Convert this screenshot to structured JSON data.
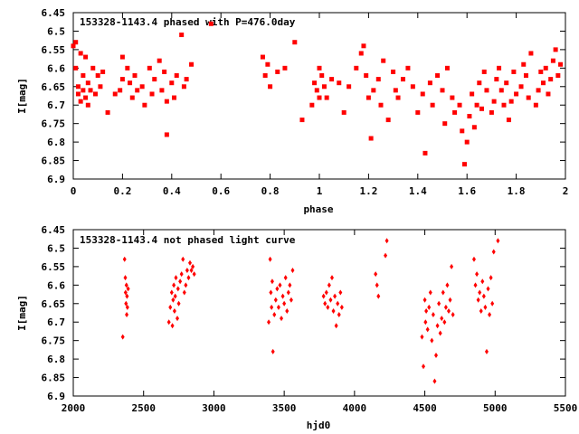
{
  "chart_data": [
    {
      "type": "scatter",
      "title": "153328-1143.4 phased with P=476.0day",
      "xlabel": "phase",
      "ylabel": "I[mag]",
      "xlim": [
        0,
        2
      ],
      "ylim": [
        6.9,
        6.45
      ],
      "y_inverted": true,
      "xticks": [
        "0",
        "0.2",
        "0.4",
        "0.6",
        "0.8",
        "1",
        "1.2",
        "1.4",
        "1.6",
        "1.8",
        "2"
      ],
      "yticks": [
        "6.45",
        "6.5",
        "6.55",
        "6.6",
        "6.65",
        "6.7",
        "6.75",
        "6.8",
        "6.85",
        "6.9"
      ],
      "marker": "filled-square",
      "color": "#ff0000",
      "grid": false,
      "points": [
        [
          0.0,
          6.54
        ],
        [
          0.01,
          6.53
        ],
        [
          0.01,
          6.6
        ],
        [
          0.02,
          6.65
        ],
        [
          0.02,
          6.67
        ],
        [
          0.03,
          6.56
        ],
        [
          0.03,
          6.69
        ],
        [
          0.04,
          6.62
        ],
        [
          0.04,
          6.66
        ],
        [
          0.05,
          6.68
        ],
        [
          0.05,
          6.57
        ],
        [
          0.06,
          6.64
        ],
        [
          0.06,
          6.7
        ],
        [
          0.07,
          6.66
        ],
        [
          0.08,
          6.6
        ],
        [
          0.09,
          6.67
        ],
        [
          0.1,
          6.62
        ],
        [
          0.11,
          6.65
        ],
        [
          0.12,
          6.61
        ],
        [
          0.14,
          6.72
        ],
        [
          0.17,
          6.67
        ],
        [
          0.19,
          6.66
        ],
        [
          0.2,
          6.57
        ],
        [
          0.2,
          6.63
        ],
        [
          0.22,
          6.6
        ],
        [
          0.23,
          6.64
        ],
        [
          0.24,
          6.68
        ],
        [
          0.25,
          6.62
        ],
        [
          0.26,
          6.66
        ],
        [
          0.28,
          6.65
        ],
        [
          0.29,
          6.7
        ],
        [
          0.31,
          6.6
        ],
        [
          0.32,
          6.67
        ],
        [
          0.33,
          6.63
        ],
        [
          0.35,
          6.58
        ],
        [
          0.36,
          6.66
        ],
        [
          0.37,
          6.61
        ],
        [
          0.38,
          6.69
        ],
        [
          0.38,
          6.78
        ],
        [
          0.4,
          6.64
        ],
        [
          0.41,
          6.68
        ],
        [
          0.42,
          6.62
        ],
        [
          0.44,
          6.51
        ],
        [
          0.45,
          6.65
        ],
        [
          0.46,
          6.63
        ],
        [
          0.48,
          6.59
        ],
        [
          0.56,
          6.48
        ],
        [
          0.77,
          6.57
        ],
        [
          0.78,
          6.62
        ],
        [
          0.79,
          6.59
        ],
        [
          0.8,
          6.65
        ],
        [
          0.83,
          6.61
        ],
        [
          0.86,
          6.6
        ],
        [
          0.9,
          6.53
        ],
        [
          0.93,
          6.74
        ],
        [
          0.97,
          6.7
        ],
        [
          0.98,
          6.64
        ],
        [
          0.99,
          6.66
        ],
        [
          1.0,
          6.68
        ],
        [
          1.0,
          6.6
        ],
        [
          1.01,
          6.62
        ],
        [
          1.02,
          6.65
        ],
        [
          1.03,
          6.68
        ],
        [
          1.05,
          6.63
        ],
        [
          1.08,
          6.64
        ],
        [
          1.1,
          6.72
        ],
        [
          1.12,
          6.65
        ],
        [
          1.15,
          6.6
        ],
        [
          1.17,
          6.56
        ],
        [
          1.18,
          6.54
        ],
        [
          1.19,
          6.62
        ],
        [
          1.2,
          6.68
        ],
        [
          1.21,
          6.79
        ],
        [
          1.22,
          6.66
        ],
        [
          1.24,
          6.63
        ],
        [
          1.25,
          6.7
        ],
        [
          1.26,
          6.58
        ],
        [
          1.28,
          6.74
        ],
        [
          1.3,
          6.61
        ],
        [
          1.31,
          6.66
        ],
        [
          1.32,
          6.68
        ],
        [
          1.34,
          6.63
        ],
        [
          1.36,
          6.6
        ],
        [
          1.38,
          6.65
        ],
        [
          1.4,
          6.72
        ],
        [
          1.42,
          6.67
        ],
        [
          1.43,
          6.83
        ],
        [
          1.45,
          6.64
        ],
        [
          1.46,
          6.7
        ],
        [
          1.48,
          6.62
        ],
        [
          1.5,
          6.66
        ],
        [
          1.51,
          6.75
        ],
        [
          1.52,
          6.6
        ],
        [
          1.54,
          6.68
        ],
        [
          1.55,
          6.72
        ],
        [
          1.57,
          6.7
        ],
        [
          1.58,
          6.77
        ],
        [
          1.59,
          6.86
        ],
        [
          1.6,
          6.8
        ],
        [
          1.61,
          6.73
        ],
        [
          1.62,
          6.67
        ],
        [
          1.63,
          6.76
        ],
        [
          1.64,
          6.7
        ],
        [
          1.65,
          6.64
        ],
        [
          1.66,
          6.71
        ],
        [
          1.67,
          6.61
        ],
        [
          1.68,
          6.66
        ],
        [
          1.7,
          6.72
        ],
        [
          1.71,
          6.69
        ],
        [
          1.72,
          6.63
        ],
        [
          1.73,
          6.6
        ],
        [
          1.74,
          6.66
        ],
        [
          1.75,
          6.7
        ],
        [
          1.76,
          6.64
        ],
        [
          1.77,
          6.74
        ],
        [
          1.78,
          6.69
        ],
        [
          1.79,
          6.61
        ],
        [
          1.8,
          6.67
        ],
        [
          1.82,
          6.65
        ],
        [
          1.83,
          6.59
        ],
        [
          1.84,
          6.62
        ],
        [
          1.85,
          6.68
        ],
        [
          1.86,
          6.56
        ],
        [
          1.88,
          6.7
        ],
        [
          1.89,
          6.66
        ],
        [
          1.9,
          6.61
        ],
        [
          1.91,
          6.64
        ],
        [
          1.92,
          6.6
        ],
        [
          1.93,
          6.67
        ],
        [
          1.94,
          6.63
        ],
        [
          1.95,
          6.58
        ],
        [
          1.96,
          6.55
        ],
        [
          1.97,
          6.62
        ],
        [
          1.98,
          6.59
        ]
      ]
    },
    {
      "type": "scatter",
      "title": "153328-1143.4 not phased light curve",
      "xlabel": "hjd0",
      "ylabel": "I[mag]",
      "xlim": [
        2000,
        5500
      ],
      "ylim": [
        6.9,
        6.45
      ],
      "y_inverted": true,
      "xticks": [
        "2000",
        "2500",
        "3000",
        "3500",
        "4000",
        "4500",
        "5000",
        "5500"
      ],
      "yticks": [
        "6.45",
        "6.5",
        "6.55",
        "6.6",
        "6.65",
        "6.7",
        "6.75",
        "6.8",
        "6.85",
        "6.9"
      ],
      "marker": "filled-diamond",
      "color": "#ff0000",
      "grid": false,
      "points": [
        [
          2352,
          6.74
        ],
        [
          2365,
          6.53
        ],
        [
          2370,
          6.58
        ],
        [
          2372,
          6.62
        ],
        [
          2375,
          6.65
        ],
        [
          2378,
          6.6
        ],
        [
          2380,
          6.68
        ],
        [
          2382,
          6.63
        ],
        [
          2385,
          6.66
        ],
        [
          2390,
          6.61
        ],
        [
          2680,
          6.7
        ],
        [
          2690,
          6.66
        ],
        [
          2700,
          6.62
        ],
        [
          2705,
          6.71
        ],
        [
          2710,
          6.64
        ],
        [
          2715,
          6.6
        ],
        [
          2720,
          6.67
        ],
        [
          2725,
          6.63
        ],
        [
          2730,
          6.58
        ],
        [
          2740,
          6.69
        ],
        [
          2745,
          6.61
        ],
        [
          2750,
          6.65
        ],
        [
          2760,
          6.59
        ],
        [
          2770,
          6.57
        ],
        [
          2780,
          6.53
        ],
        [
          2790,
          6.62
        ],
        [
          2800,
          6.6
        ],
        [
          2810,
          6.56
        ],
        [
          2820,
          6.58
        ],
        [
          2830,
          6.54
        ],
        [
          2840,
          6.56
        ],
        [
          2850,
          6.55
        ],
        [
          2860,
          6.57
        ],
        [
          3390,
          6.7
        ],
        [
          3400,
          6.53
        ],
        [
          3405,
          6.62
        ],
        [
          3410,
          6.66
        ],
        [
          3415,
          6.59
        ],
        [
          3420,
          6.78
        ],
        [
          3430,
          6.68
        ],
        [
          3440,
          6.64
        ],
        [
          3450,
          6.61
        ],
        [
          3460,
          6.66
        ],
        [
          3470,
          6.6
        ],
        [
          3480,
          6.69
        ],
        [
          3490,
          6.63
        ],
        [
          3500,
          6.65
        ],
        [
          3510,
          6.58
        ],
        [
          3520,
          6.67
        ],
        [
          3530,
          6.62
        ],
        [
          3540,
          6.6
        ],
        [
          3550,
          6.64
        ],
        [
          3560,
          6.56
        ],
        [
          3780,
          6.63
        ],
        [
          3790,
          6.65
        ],
        [
          3800,
          6.62
        ],
        [
          3810,
          6.66
        ],
        [
          3820,
          6.6
        ],
        [
          3830,
          6.64
        ],
        [
          3840,
          6.58
        ],
        [
          3850,
          6.67
        ],
        [
          3860,
          6.63
        ],
        [
          3870,
          6.71
        ],
        [
          3880,
          6.65
        ],
        [
          3890,
          6.68
        ],
        [
          3900,
          6.62
        ],
        [
          3910,
          6.66
        ],
        [
          4150,
          6.57
        ],
        [
          4160,
          6.6
        ],
        [
          4170,
          6.63
        ],
        [
          4220,
          6.52
        ],
        [
          4230,
          6.48
        ],
        [
          4480,
          6.74
        ],
        [
          4490,
          6.82
        ],
        [
          4500,
          6.64
        ],
        [
          4505,
          6.7
        ],
        [
          4510,
          6.67
        ],
        [
          4520,
          6.72
        ],
        [
          4530,
          6.66
        ],
        [
          4540,
          6.62
        ],
        [
          4550,
          6.75
        ],
        [
          4560,
          6.68
        ],
        [
          4570,
          6.86
        ],
        [
          4580,
          6.79
        ],
        [
          4590,
          6.71
        ],
        [
          4600,
          6.65
        ],
        [
          4610,
          6.73
        ],
        [
          4620,
          6.69
        ],
        [
          4630,
          6.62
        ],
        [
          4640,
          6.7
        ],
        [
          4650,
          6.66
        ],
        [
          4660,
          6.6
        ],
        [
          4670,
          6.67
        ],
        [
          4680,
          6.64
        ],
        [
          4690,
          6.55
        ],
        [
          4700,
          6.68
        ],
        [
          4850,
          6.53
        ],
        [
          4860,
          6.6
        ],
        [
          4870,
          6.57
        ],
        [
          4880,
          6.64
        ],
        [
          4890,
          6.62
        ],
        [
          4900,
          6.67
        ],
        [
          4910,
          6.59
        ],
        [
          4920,
          6.63
        ],
        [
          4930,
          6.66
        ],
        [
          4940,
          6.78
        ],
        [
          4950,
          6.61
        ],
        [
          4960,
          6.68
        ],
        [
          4970,
          6.58
        ],
        [
          4980,
          6.65
        ],
        [
          4990,
          6.51
        ],
        [
          5020,
          6.48
        ]
      ]
    }
  ]
}
